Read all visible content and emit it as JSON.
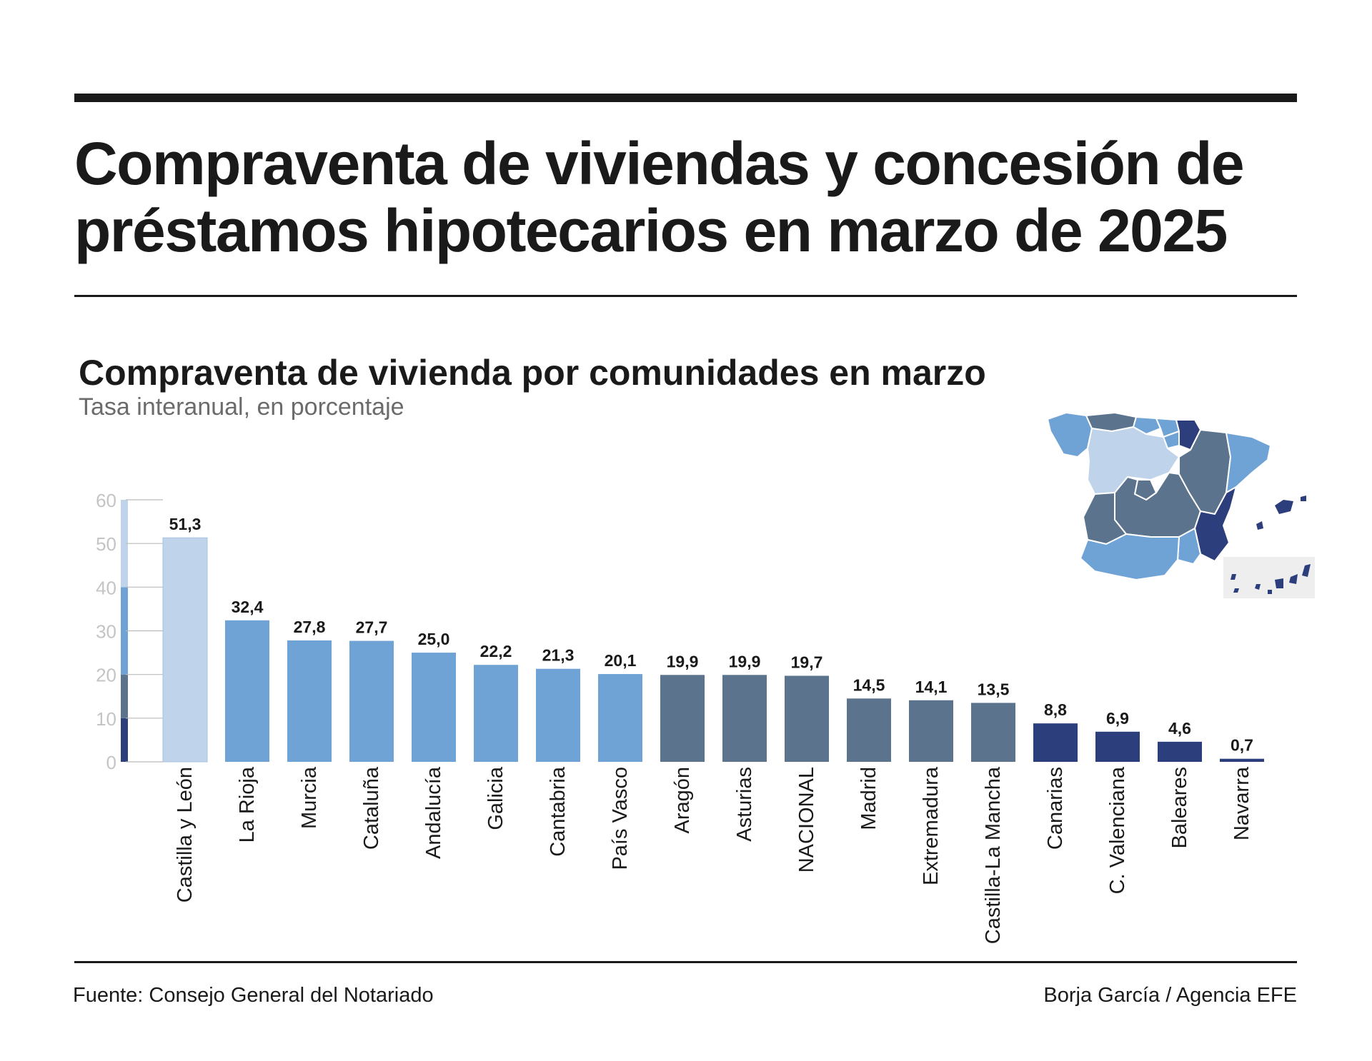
{
  "title": "Compraventa de viviendas y concesión de préstamos hipotecarios en marzo de 2025",
  "colors": {
    "text": "#1a1a1a",
    "axis": "#bbbbbb",
    "tier_1": "#bfd4ea",
    "tier_2": "#6fa3d6",
    "tier_3": "#5c738d",
    "tier_4": "#2c3f7c",
    "map_inset_bg": "#eeeeee"
  },
  "chart_data": {
    "type": "bar",
    "title": "Compraventa de vivienda por comunidades en marzo",
    "subtitle": "Tasa interanual, en porcentaje",
    "categories": [
      "Castilla y León",
      "La Rioja",
      "Murcia",
      "Cataluña",
      "Andalucía",
      "Galicia",
      "Cantabria",
      "País Vasco",
      "Aragón",
      "Asturias",
      "NACIONAL",
      "Madrid",
      "Extremadura",
      "Castilla-La Mancha",
      "Canarias",
      "C. Valenciana",
      "Baleares",
      "Navarra"
    ],
    "values": [
      51.3,
      32.4,
      27.8,
      27.7,
      25.0,
      22.2,
      21.3,
      20.1,
      19.9,
      19.9,
      19.7,
      14.5,
      14.1,
      13.5,
      8.8,
      6.9,
      4.6,
      0.7
    ],
    "value_labels": [
      "51,3",
      "32,4",
      "27,8",
      "27,7",
      "25,0",
      "22,2",
      "21,3",
      "20,1",
      "19,9",
      "19,9",
      "19,7",
      "14,5",
      "14,1",
      "13,5",
      "8,8",
      "6,9",
      "4,6",
      "0,7"
    ],
    "bar_tiers": [
      1,
      2,
      2,
      2,
      2,
      2,
      2,
      2,
      3,
      3,
      3,
      3,
      3,
      3,
      4,
      4,
      4,
      4
    ],
    "ylim": [
      0,
      60
    ],
    "yticks": [
      "0",
      "10",
      "20",
      "30",
      "40",
      "50",
      "60"
    ],
    "legend_scale": [
      {
        "from": 0,
        "to": 10,
        "tier": 4
      },
      {
        "from": 10,
        "to": 20,
        "tier": 3
      },
      {
        "from": 20,
        "to": 40,
        "tier": 2
      },
      {
        "from": 40,
        "to": 60,
        "tier": 1
      }
    ],
    "grid": false,
    "xlabel": "",
    "ylabel": ""
  },
  "map": {
    "description_icon": "spain-choropleth-map-icon"
  },
  "footer": {
    "source": "Fuente: Consejo General del Notariado",
    "credit": "Borja García / Agencia EFE"
  }
}
